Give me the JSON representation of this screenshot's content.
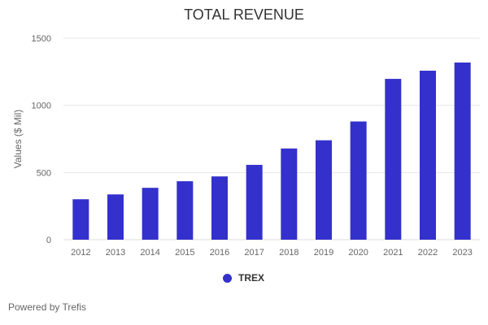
{
  "chart_data": {
    "type": "bar",
    "title": "TOTAL REVENUE",
    "xlabel": "",
    "ylabel": "Values ($ Mil)",
    "ylim": [
      0,
      1500
    ],
    "yticks": [
      0,
      500,
      1000,
      1500
    ],
    "grid": true,
    "legend_placement": "bottom",
    "categories": [
      "2012",
      "2013",
      "2014",
      "2015",
      "2016",
      "2017",
      "2018",
      "2019",
      "2020",
      "2021",
      "2022",
      "2023"
    ],
    "series": [
      {
        "name": "TREX",
        "color": "#3430cb",
        "values": [
          301,
          337,
          386,
          435,
          471,
          557,
          679,
          740,
          880,
          1197,
          1258,
          1319
        ]
      }
    ]
  },
  "credit": "Powered by Trefis"
}
